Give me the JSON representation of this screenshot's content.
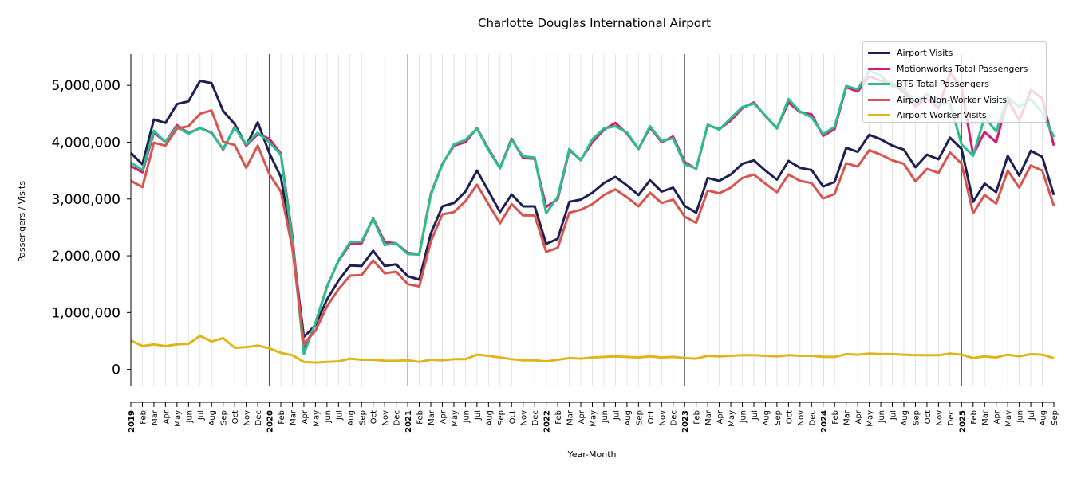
{
  "chart_data": {
    "type": "line",
    "title": "Charlotte Douglas International Airport",
    "xlabel": "Year-Month",
    "ylabel": "Passengers / Visits",
    "ylim": [
      -300000,
      5550000
    ],
    "y_ticks": [
      0,
      1000000,
      2000000,
      3000000,
      4000000,
      5000000
    ],
    "y_tick_labels": [
      "0",
      "1,000,000",
      "2,000,000",
      "3,000,000",
      "4,000,000",
      "5,000,000"
    ],
    "x_tick_labels": [
      "2019",
      "Feb",
      "Mar",
      "Apr",
      "May",
      "Jun",
      "Jul",
      "Aug",
      "Sep",
      "Oct",
      "Nov",
      "Dec",
      "2020",
      "Feb",
      "Mar",
      "Apr",
      "May",
      "Jun",
      "Jul",
      "Aug",
      "Sep",
      "Oct",
      "Nov",
      "Dec",
      "2021",
      "Feb",
      "Mar",
      "Apr",
      "May",
      "Jun",
      "Jul",
      "Aug",
      "Sep",
      "Oct",
      "Nov",
      "Dec",
      "2022",
      "Feb",
      "Mar",
      "Apr",
      "May",
      "Jun",
      "Jul",
      "Aug",
      "Sep",
      "Oct",
      "Nov",
      "Dec",
      "2023",
      "Feb",
      "Mar",
      "Apr",
      "May",
      "Jun",
      "Jul",
      "Aug",
      "Sep",
      "Oct",
      "Nov",
      "Dec",
      "2024",
      "Feb",
      "Mar",
      "Apr",
      "May",
      "Jun",
      "Jul",
      "Aug",
      "Sep",
      "Oct",
      "Nov",
      "Dec",
      "2025",
      "Feb",
      "Mar",
      "Apr",
      "May",
      "Jun",
      "Jul",
      "Aug",
      "Sep"
    ],
    "grid": "vertical",
    "legend_position": "top-right",
    "series": [
      {
        "name": "Airport Visits",
        "color": "#1e2052",
        "values": [
          3810000,
          3610000,
          4400000,
          4340000,
          4670000,
          4720000,
          5080000,
          5040000,
          4550000,
          4320000,
          3940000,
          4350000,
          3810000,
          3390000,
          2200000,
          570000,
          780000,
          1230000,
          1560000,
          1830000,
          1820000,
          2090000,
          1820000,
          1850000,
          1640000,
          1580000,
          2390000,
          2870000,
          2930000,
          3130000,
          3500000,
          3140000,
          2770000,
          3080000,
          2870000,
          2870000,
          2210000,
          2300000,
          2950000,
          2990000,
          3110000,
          3280000,
          3390000,
          3240000,
          3070000,
          3330000,
          3130000,
          3200000,
          2880000,
          2760000,
          3370000,
          3320000,
          3430000,
          3620000,
          3680000,
          3500000,
          3340000,
          3670000,
          3550000,
          3510000,
          3220000,
          3300000,
          3900000,
          3830000,
          4130000,
          4050000,
          3940000,
          3870000,
          3560000,
          3780000,
          3700000,
          4080000,
          3880000,
          2950000,
          3270000,
          3120000,
          3760000,
          3410000,
          3850000,
          3740000,
          3070000
        ]
      },
      {
        "name": "Motionworks Total Passengers",
        "color": "#d6197b",
        "values": [
          3580000,
          3470000,
          4170000,
          4000000,
          4300000,
          4160000,
          4250000,
          4170000,
          3870000,
          4270000,
          3940000,
          4140000,
          4060000,
          3800000,
          2340000,
          340000,
          810000,
          1460000,
          1910000,
          2210000,
          2220000,
          2660000,
          2240000,
          2220000,
          2050000,
          2030000,
          3090000,
          3620000,
          3940000,
          4000000,
          4250000,
          3880000,
          3550000,
          4060000,
          3720000,
          3710000,
          2860000,
          3000000,
          3860000,
          3690000,
          4000000,
          4220000,
          4340000,
          4150000,
          3880000,
          4260000,
          4000000,
          4100000,
          3650000,
          3530000,
          4300000,
          4230000,
          4380000,
          4600000,
          4700000,
          4460000,
          4250000,
          4700000,
          4530000,
          4490000,
          4110000,
          4230000,
          4970000,
          4890000,
          5160000,
          5080000,
          5030000,
          4880000,
          4630000,
          4770000,
          4600000,
          5220000,
          4960000,
          3780000,
          4180000,
          4000000,
          4760000,
          4380000,
          4920000,
          4770000,
          3940000
        ]
      },
      {
        "name": "BTS Total Passengers",
        "color": "#29bf8c",
        "values": [
          3640000,
          3510000,
          4200000,
          4000000,
          4270000,
          4150000,
          4250000,
          4160000,
          3880000,
          4260000,
          3960000,
          4170000,
          4000000,
          3780000,
          2260000,
          270000,
          820000,
          1450000,
          1920000,
          2240000,
          2250000,
          2650000,
          2190000,
          2220000,
          2030000,
          2020000,
          3070000,
          3610000,
          3960000,
          4040000,
          4240000,
          3860000,
          3540000,
          4040000,
          3750000,
          3730000,
          2750000,
          3040000,
          3880000,
          3680000,
          4050000,
          4240000,
          4280000,
          4170000,
          3880000,
          4280000,
          4020000,
          4070000,
          3610000,
          3540000,
          4310000,
          4220000,
          4420000,
          4620000,
          4680000,
          4470000,
          4240000,
          4760000,
          4540000,
          4440000,
          4140000,
          4270000,
          4990000,
          4930000,
          5260000,
          5170000,
          4980000,
          4950000,
          4690000,
          4850000,
          4680000,
          4680000,
          3960000,
          3760000,
          4440000,
          4190000,
          4790000,
          4620000,
          4760000,
          4520000,
          4090000
        ]
      },
      {
        "name": "Airport Non-Worker Visits",
        "color": "#d9534f",
        "values": [
          3320000,
          3210000,
          3990000,
          3940000,
          4240000,
          4280000,
          4500000,
          4560000,
          4010000,
          3950000,
          3550000,
          3940000,
          3440000,
          3130000,
          2130000,
          450000,
          680000,
          1110000,
          1410000,
          1650000,
          1660000,
          1920000,
          1690000,
          1720000,
          1500000,
          1460000,
          2250000,
          2730000,
          2770000,
          2960000,
          3250000,
          2910000,
          2570000,
          2910000,
          2710000,
          2710000,
          2070000,
          2140000,
          2760000,
          2810000,
          2910000,
          3070000,
          3170000,
          3030000,
          2870000,
          3110000,
          2930000,
          2990000,
          2690000,
          2580000,
          3150000,
          3100000,
          3200000,
          3370000,
          3430000,
          3270000,
          3120000,
          3430000,
          3320000,
          3280000,
          3010000,
          3090000,
          3630000,
          3570000,
          3860000,
          3780000,
          3680000,
          3620000,
          3310000,
          3530000,
          3460000,
          3820000,
          3620000,
          2750000,
          3070000,
          2920000,
          3500000,
          3200000,
          3590000,
          3500000,
          2880000
        ]
      },
      {
        "name": "Airport Worker Visits",
        "color": "#e0b51a",
        "values": [
          510000,
          410000,
          440000,
          410000,
          440000,
          450000,
          590000,
          490000,
          550000,
          380000,
          390000,
          420000,
          370000,
          290000,
          250000,
          130000,
          120000,
          130000,
          140000,
          190000,
          170000,
          170000,
          150000,
          150000,
          160000,
          130000,
          170000,
          160000,
          180000,
          180000,
          260000,
          240000,
          210000,
          180000,
          160000,
          160000,
          140000,
          170000,
          200000,
          190000,
          210000,
          220000,
          230000,
          220000,
          210000,
          230000,
          210000,
          220000,
          200000,
          190000,
          240000,
          230000,
          240000,
          250000,
          250000,
          240000,
          230000,
          250000,
          240000,
          240000,
          220000,
          220000,
          270000,
          260000,
          280000,
          270000,
          270000,
          260000,
          250000,
          250000,
          250000,
          280000,
          260000,
          200000,
          230000,
          210000,
          260000,
          230000,
          270000,
          260000,
          200000
        ]
      }
    ]
  }
}
